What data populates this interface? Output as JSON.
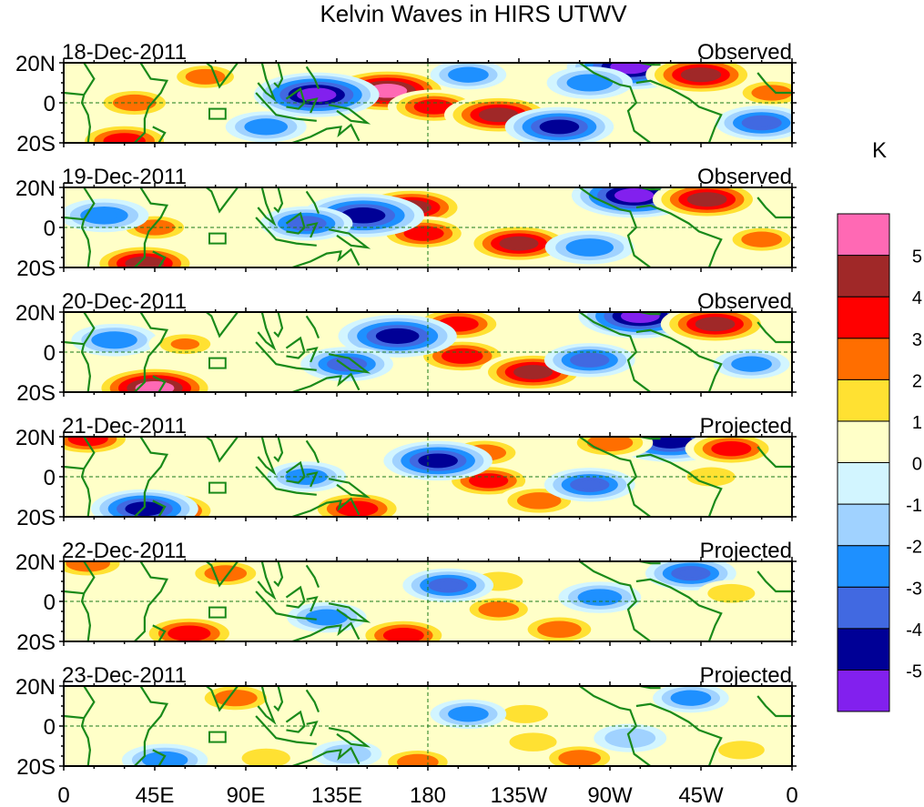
{
  "chart_data": {
    "type": "heatmap",
    "title": "Kelvin Waves in HIRS UTWV",
    "units_label": "K",
    "xlabel": "",
    "ylabel": "",
    "x_ticks": [
      {
        "lon": 0,
        "label": "0"
      },
      {
        "lon": 45,
        "label": "45E"
      },
      {
        "lon": 90,
        "label": "90E"
      },
      {
        "lon": 135,
        "label": "135E"
      },
      {
        "lon": 180,
        "label": "180"
      },
      {
        "lon": 225,
        "label": "135W"
      },
      {
        "lon": 270,
        "label": "90W"
      },
      {
        "lon": 315,
        "label": "45W"
      },
      {
        "lon": 360,
        "label": "0"
      }
    ],
    "y_ticks": [
      {
        "lat": 20,
        "label": "20N"
      },
      {
        "lat": 0,
        "label": "0"
      },
      {
        "lat": -20,
        "label": "20S"
      }
    ],
    "xlim": [
      0,
      360
    ],
    "ylim": [
      -20,
      20
    ],
    "reference_lines": [
      "equator (dashed)",
      "180 meridian (dashed)"
    ],
    "colorbar": {
      "levels": [
        -5,
        -4,
        -3,
        -2,
        -1,
        0,
        1,
        2,
        3,
        4,
        5
      ],
      "colors": [
        "#8220EE",
        "#000096",
        "#4169E1",
        "#1E90FF",
        "#A0D2FF",
        "#D2F5FF",
        "#FFFFC8",
        "#FFE132",
        "#FF6E00",
        "#FF0000",
        "#A02828",
        "#FF69B4"
      ],
      "placement": "right"
    },
    "panels": [
      {
        "date": "18-Dec-2011",
        "status": "Observed",
        "blobs": [
          {
            "lon": 160,
            "lat": 6,
            "value": 5.2
          },
          {
            "lon": 183,
            "lat": -2,
            "value": 3.2
          },
          {
            "lon": 125,
            "lat": 4,
            "value": -5.2
          },
          {
            "lon": 215,
            "lat": -6,
            "value": 4.2
          },
          {
            "lon": 280,
            "lat": 18,
            "value": -5.3
          },
          {
            "lon": 315,
            "lat": 14,
            "value": 4.3
          },
          {
            "lon": 245,
            "lat": -12,
            "value": -4.2
          },
          {
            "lon": 35,
            "lat": 0,
            "value": 2.5
          },
          {
            "lon": 30,
            "lat": -19,
            "value": 3.5
          },
          {
            "lon": 350,
            "lat": 5,
            "value": 2.2
          },
          {
            "lon": 345,
            "lat": -10,
            "value": -3.2
          },
          {
            "lon": 70,
            "lat": 13,
            "value": 2.1
          },
          {
            "lon": 100,
            "lat": -12,
            "value": -2.5
          },
          {
            "lon": 260,
            "lat": 10,
            "value": -2.8
          },
          {
            "lon": 200,
            "lat": 14,
            "value": -2.2
          }
        ]
      },
      {
        "date": "19-Dec-2011",
        "status": "Observed",
        "blobs": [
          {
            "lon": 172,
            "lat": 10,
            "value": 4.2
          },
          {
            "lon": 178,
            "lat": -3,
            "value": 3.2
          },
          {
            "lon": 148,
            "lat": 6,
            "value": -5.0
          },
          {
            "lon": 225,
            "lat": -8,
            "value": 4.1
          },
          {
            "lon": 282,
            "lat": 16,
            "value": -5.2
          },
          {
            "lon": 318,
            "lat": 14,
            "value": 4.2
          },
          {
            "lon": 40,
            "lat": -18,
            "value": 4.1
          },
          {
            "lon": 45,
            "lat": 0,
            "value": 2.2
          },
          {
            "lon": 120,
            "lat": 2,
            "value": -3.2
          },
          {
            "lon": 20,
            "lat": 6,
            "value": -3.0
          },
          {
            "lon": 260,
            "lat": -10,
            "value": -3.0
          },
          {
            "lon": 345,
            "lat": -6,
            "value": 2.2
          }
        ]
      },
      {
        "date": "20-Dec-2011",
        "status": "Observed",
        "blobs": [
          {
            "lon": 195,
            "lat": 14,
            "value": 3.3
          },
          {
            "lon": 197,
            "lat": -2,
            "value": 3.4
          },
          {
            "lon": 165,
            "lat": 8,
            "value": -4.8
          },
          {
            "lon": 232,
            "lat": -10,
            "value": 4.1
          },
          {
            "lon": 285,
            "lat": 18,
            "value": -5.1
          },
          {
            "lon": 322,
            "lat": 14,
            "value": 4.2
          },
          {
            "lon": 45,
            "lat": -18,
            "value": 5.1
          },
          {
            "lon": 140,
            "lat": -6,
            "value": -3.2
          },
          {
            "lon": 25,
            "lat": 6,
            "value": -2.8
          },
          {
            "lon": 260,
            "lat": -4,
            "value": -3.1
          },
          {
            "lon": 60,
            "lat": 4,
            "value": 2.0
          },
          {
            "lon": 340,
            "lat": -6,
            "value": -2.2
          }
        ]
      },
      {
        "date": "21-Dec-2011",
        "status": "Projected",
        "blobs": [
          {
            "lon": 208,
            "lat": 12,
            "value": 2.5
          },
          {
            "lon": 210,
            "lat": -2,
            "value": 3.1
          },
          {
            "lon": 185,
            "lat": 8,
            "value": -4.2
          },
          {
            "lon": 235,
            "lat": -12,
            "value": 2.6
          },
          {
            "lon": 300,
            "lat": 18,
            "value": -4.8
          },
          {
            "lon": 330,
            "lat": 14,
            "value": 3.2
          },
          {
            "lon": 50,
            "lat": -17,
            "value": 4.2
          },
          {
            "lon": 145,
            "lat": -16,
            "value": 3.5
          },
          {
            "lon": 40,
            "lat": -16,
            "value": -4.1
          },
          {
            "lon": 12,
            "lat": 19,
            "value": 3.2
          },
          {
            "lon": 260,
            "lat": -4,
            "value": -3.1
          },
          {
            "lon": 270,
            "lat": 17,
            "value": 2.8
          },
          {
            "lon": 120,
            "lat": 0,
            "value": -2.4
          },
          {
            "lon": 320,
            "lat": 0,
            "value": 1.8
          }
        ]
      },
      {
        "date": "22-Dec-2011",
        "status": "Projected",
        "blobs": [
          {
            "lon": 215,
            "lat": 10,
            "value": 1.8
          },
          {
            "lon": 215,
            "lat": -4,
            "value": 2.2
          },
          {
            "lon": 190,
            "lat": 8,
            "value": -3.1
          },
          {
            "lon": 245,
            "lat": -14,
            "value": 2.6
          },
          {
            "lon": 62,
            "lat": -16,
            "value": 3.6
          },
          {
            "lon": 168,
            "lat": -17,
            "value": 3.3
          },
          {
            "lon": 12,
            "lat": 19,
            "value": 2.6
          },
          {
            "lon": 265,
            "lat": 2,
            "value": -2.6
          },
          {
            "lon": 310,
            "lat": 14,
            "value": -3.1
          },
          {
            "lon": 130,
            "lat": -8,
            "value": -2.4
          },
          {
            "lon": 330,
            "lat": 4,
            "value": 1.7
          },
          {
            "lon": 80,
            "lat": 14,
            "value": 2.4
          }
        ]
      },
      {
        "date": "23-Dec-2011",
        "status": "Projected",
        "blobs": [
          {
            "lon": 228,
            "lat": 6,
            "value": 1.6
          },
          {
            "lon": 232,
            "lat": -8,
            "value": 1.7
          },
          {
            "lon": 255,
            "lat": -16,
            "value": 2.4
          },
          {
            "lon": 175,
            "lat": -18,
            "value": 2.3
          },
          {
            "lon": 85,
            "lat": 14,
            "value": 2.5
          },
          {
            "lon": 200,
            "lat": 6,
            "value": -2.2
          },
          {
            "lon": 50,
            "lat": -17,
            "value": -2.8
          },
          {
            "lon": 280,
            "lat": -6,
            "value": -2.0
          },
          {
            "lon": 310,
            "lat": 14,
            "value": -2.2
          },
          {
            "lon": 335,
            "lat": -12,
            "value": 1.6
          },
          {
            "lon": 100,
            "lat": -16,
            "value": 1.8
          },
          {
            "lon": 140,
            "lat": -14,
            "value": -1.8
          }
        ]
      }
    ]
  }
}
